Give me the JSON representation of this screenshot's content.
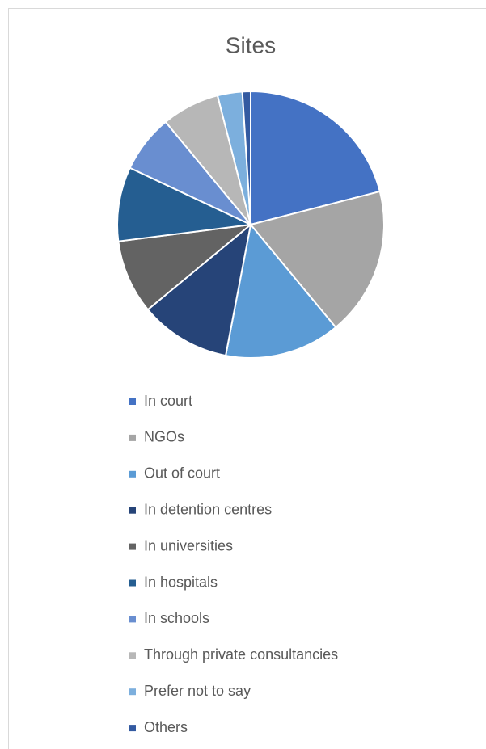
{
  "chart_data": {
    "type": "pie",
    "title": "Sites",
    "categories": [
      "In court",
      "NGOs",
      "Out of court",
      "In detention centres",
      "In universities",
      "In hospitals",
      "In schools",
      "Through private consultancies",
      "Prefer not to say",
      "Others"
    ],
    "values": [
      21,
      18,
      14,
      11,
      9,
      9,
      7,
      7,
      3,
      1
    ],
    "colors": [
      "#4472c4",
      "#a5a5a5",
      "#5b9bd5",
      "#264478",
      "#636363",
      "#255e91",
      "#698ed0",
      "#b7b7b7",
      "#7cafdd",
      "#335aa1"
    ]
  }
}
